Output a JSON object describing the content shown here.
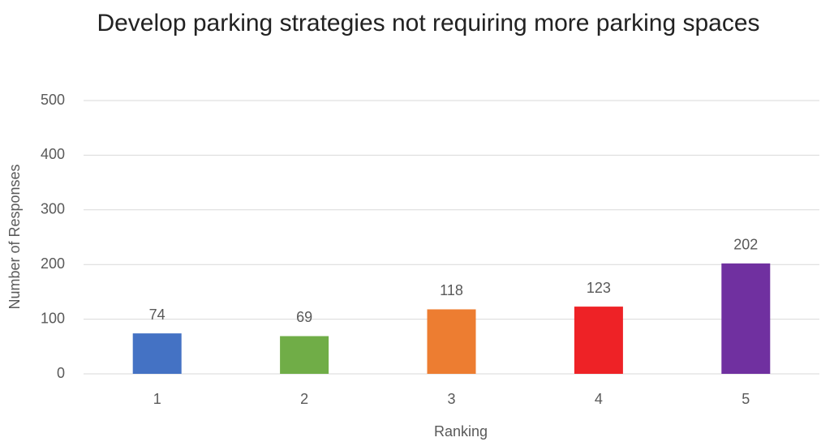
{
  "chart_data": {
    "type": "bar",
    "title": "Develop parking strategies not requiring more parking spaces",
    "categories": [
      "1",
      "2",
      "3",
      "4",
      "5"
    ],
    "values": [
      74,
      69,
      118,
      123,
      202
    ],
    "colors": [
      "#4472c4",
      "#70ad47",
      "#ed7d31",
      "#ee2226",
      "#7030a0"
    ],
    "xlabel": "Ranking",
    "ylabel": "Number of Responses",
    "ylim": [
      0,
      500
    ],
    "yticks": [
      0,
      100,
      200,
      300,
      400,
      500
    ],
    "grid": true
  }
}
